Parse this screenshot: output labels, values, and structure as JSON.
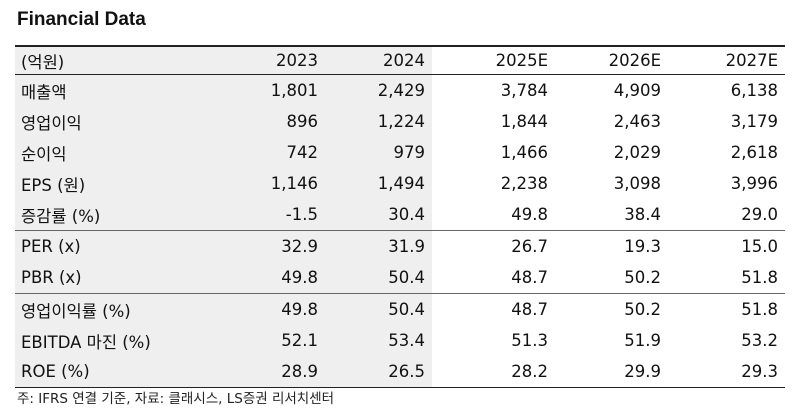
{
  "title": "Financial Data",
  "table": {
    "header": [
      "(억원)",
      "2023",
      "2024",
      "2025E",
      "2026E",
      "2027E"
    ],
    "groups": [
      [
        [
          "매출액",
          "1,801",
          "2,429",
          "3,784",
          "4,909",
          "6,138"
        ],
        [
          "영업이익",
          "896",
          "1,224",
          "1,844",
          "2,463",
          "3,179"
        ],
        [
          "순이익",
          "742",
          "979",
          "1,466",
          "2,029",
          "2,618"
        ],
        [
          "EPS (원)",
          "1,146",
          "1,494",
          "2,238",
          "3,098",
          "3,996"
        ],
        [
          "증감률 (%)",
          "-1.5",
          "30.4",
          "49.8",
          "38.4",
          "29.0"
        ]
      ],
      [
        [
          "PER (x)",
          "32.9",
          "31.9",
          "26.7",
          "19.3",
          "15.0"
        ],
        [
          "PBR (x)",
          "49.8",
          "50.4",
          "48.7",
          "50.2",
          "51.8"
        ]
      ],
      [
        [
          "영업이익률 (%)",
          "49.8",
          "50.4",
          "48.7",
          "50.2",
          "51.8"
        ],
        [
          "EBITDA 마진 (%)",
          "52.1",
          "53.4",
          "51.3",
          "51.9",
          "53.2"
        ],
        [
          "ROE (%)",
          "28.9",
          "26.5",
          "28.2",
          "29.9",
          "29.3"
        ]
      ]
    ]
  },
  "note": "주: IFRS 연결 기준, 자료: 클래시스, LS증권 리서치센터"
}
